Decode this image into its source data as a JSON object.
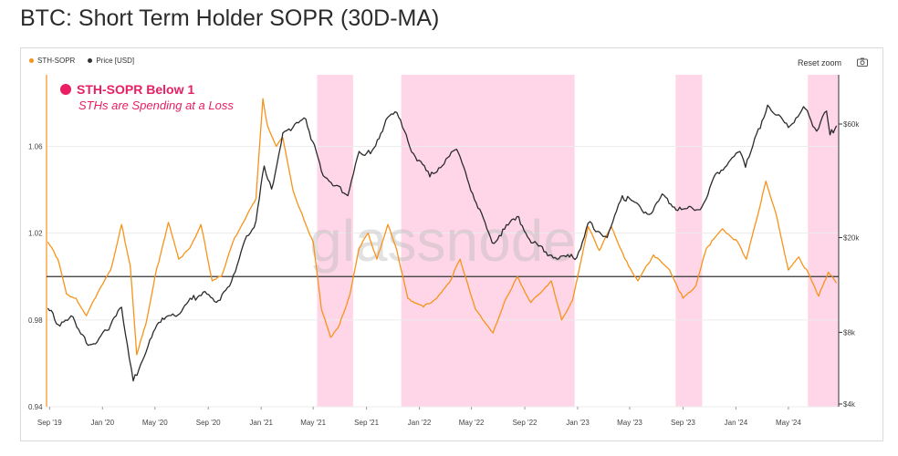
{
  "title": "BTC: Short Term Holder SOPR (30D-MA)",
  "legend": [
    {
      "label": "STH-SOPR",
      "color": "#f7931a"
    },
    {
      "label": "Price [USD]",
      "color": "#333333"
    }
  ],
  "toolbar": {
    "reset_label": "Reset zoom",
    "camera_icon": "camera-icon"
  },
  "annotation": {
    "title": "STH-SOPR Below 1",
    "subtitle": "STHs are Spending at a Loss",
    "color": "#e91e63"
  },
  "watermark": "glassnode",
  "colors": {
    "sopr": "#f7931a",
    "price": "#2b2b2b",
    "band": "#ffd6e7",
    "baseline": "#333333"
  },
  "chart_data": {
    "type": "line",
    "x_ticks": [
      "Sep '19",
      "Jan '20",
      "May '20",
      "Sep '20",
      "Jan '21",
      "May '21",
      "Sep '21",
      "Jan '22",
      "May '22",
      "Sep '22",
      "Jan '23",
      "May '23",
      "Sep '23",
      "Jan '24",
      "May '24"
    ],
    "x_range": [
      "2019-08-25",
      "2024-08-25"
    ],
    "y_left": {
      "label": "STH-SOPR",
      "ticks": [
        "0.94",
        "0.98",
        "1.02",
        "1.06"
      ],
      "range": [
        0.94,
        1.093
      ]
    },
    "y_right": {
      "label": "Price [USD]",
      "scale": "log",
      "ticks": [
        "$4k",
        "$8k",
        "$20k",
        "$60k"
      ],
      "tick_values": [
        4000,
        8000,
        20000,
        60000
      ]
    },
    "baseline": 1.0,
    "highlight_bands": [
      [
        "2021-05-10",
        "2021-08-01"
      ],
      [
        "2021-11-20",
        "2022-12-25"
      ],
      [
        "2023-08-15",
        "2023-10-15"
      ],
      [
        "2024-06-15",
        "2024-08-25"
      ]
    ],
    "series": [
      {
        "name": "STH-SOPR",
        "axis": "left",
        "points": [
          [
            "2019-08-28",
            1.016
          ],
          [
            "2019-09-20",
            1.008
          ],
          [
            "2019-10-10",
            0.992
          ],
          [
            "2019-11-01",
            0.99
          ],
          [
            "2019-11-25",
            0.982
          ],
          [
            "2019-12-20",
            0.992
          ],
          [
            "2020-01-20",
            1.003
          ],
          [
            "2020-02-14",
            1.024
          ],
          [
            "2020-03-05",
            1.005
          ],
          [
            "2020-03-20",
            0.964
          ],
          [
            "2020-04-10",
            0.978
          ],
          [
            "2020-05-01",
            1.0
          ],
          [
            "2020-06-01",
            1.025
          ],
          [
            "2020-06-25",
            1.008
          ],
          [
            "2020-07-20",
            1.013
          ],
          [
            "2020-08-15",
            1.024
          ],
          [
            "2020-09-10",
            0.998
          ],
          [
            "2020-10-01",
            1.0
          ],
          [
            "2020-11-01",
            1.018
          ],
          [
            "2020-12-01",
            1.029
          ],
          [
            "2020-12-20",
            1.036
          ],
          [
            "2021-01-05",
            1.082
          ],
          [
            "2021-01-15",
            1.07
          ],
          [
            "2021-02-05",
            1.06
          ],
          [
            "2021-02-20",
            1.064
          ],
          [
            "2021-03-15",
            1.04
          ],
          [
            "2021-04-10",
            1.026
          ],
          [
            "2021-05-01",
            1.016
          ],
          [
            "2021-05-20",
            0.985
          ],
          [
            "2021-06-10",
            0.972
          ],
          [
            "2021-07-01",
            0.978
          ],
          [
            "2021-07-25",
            0.992
          ],
          [
            "2021-08-15",
            1.013
          ],
          [
            "2021-09-05",
            1.02
          ],
          [
            "2021-09-25",
            1.008
          ],
          [
            "2021-10-20",
            1.024
          ],
          [
            "2021-11-10",
            1.012
          ],
          [
            "2021-12-05",
            0.99
          ],
          [
            "2022-01-10",
            0.986
          ],
          [
            "2022-02-10",
            0.99
          ],
          [
            "2022-03-10",
            0.997
          ],
          [
            "2022-04-05",
            1.008
          ],
          [
            "2022-05-10",
            0.985
          ],
          [
            "2022-06-20",
            0.974
          ],
          [
            "2022-07-20",
            0.99
          ],
          [
            "2022-08-15",
            1.0
          ],
          [
            "2022-09-15",
            0.988
          ],
          [
            "2022-11-01",
            0.998
          ],
          [
            "2022-11-25",
            0.98
          ],
          [
            "2022-12-20",
            0.989
          ],
          [
            "2023-01-25",
            1.023
          ],
          [
            "2023-02-20",
            1.012
          ],
          [
            "2023-03-20",
            1.023
          ],
          [
            "2023-04-20",
            1.008
          ],
          [
            "2023-05-20",
            0.998
          ],
          [
            "2023-06-25",
            1.01
          ],
          [
            "2023-08-01",
            1.003
          ],
          [
            "2023-09-01",
            0.99
          ],
          [
            "2023-10-01",
            0.996
          ],
          [
            "2023-10-25",
            1.013
          ],
          [
            "2023-12-01",
            1.022
          ],
          [
            "2024-01-05",
            1.016
          ],
          [
            "2024-01-25",
            1.008
          ],
          [
            "2024-02-20",
            1.028
          ],
          [
            "2024-03-10",
            1.044
          ],
          [
            "2024-04-01",
            1.03
          ],
          [
            "2024-05-01",
            1.003
          ],
          [
            "2024-05-25",
            1.009
          ],
          [
            "2024-06-20",
            1.0
          ],
          [
            "2024-07-10",
            0.991
          ],
          [
            "2024-08-01",
            1.002
          ],
          [
            "2024-08-20",
            0.997
          ]
        ]
      },
      {
        "name": "Price [USD]",
        "axis": "right",
        "points": [
          [
            "2019-08-28",
            10100
          ],
          [
            "2019-09-25",
            8500
          ],
          [
            "2019-10-25",
            9300
          ],
          [
            "2019-11-25",
            7200
          ],
          [
            "2019-12-20",
            7300
          ],
          [
            "2020-01-20",
            8600
          ],
          [
            "2020-02-14",
            10200
          ],
          [
            "2020-03-12",
            5000
          ],
          [
            "2020-04-15",
            7000
          ],
          [
            "2020-05-10",
            8800
          ],
          [
            "2020-06-15",
            9400
          ],
          [
            "2020-07-25",
            11000
          ],
          [
            "2020-08-20",
            11800
          ],
          [
            "2020-09-20",
            10700
          ],
          [
            "2020-10-20",
            12500
          ],
          [
            "2020-11-20",
            18500
          ],
          [
            "2020-12-20",
            23500
          ],
          [
            "2021-01-08",
            40000
          ],
          [
            "2021-01-25",
            32000
          ],
          [
            "2021-02-20",
            55000
          ],
          [
            "2021-03-15",
            58000
          ],
          [
            "2021-04-14",
            63000
          ],
          [
            "2021-05-20",
            38000
          ],
          [
            "2021-06-20",
            33000
          ],
          [
            "2021-07-20",
            30000
          ],
          [
            "2021-08-15",
            46000
          ],
          [
            "2021-09-10",
            45000
          ],
          [
            "2021-10-20",
            64000
          ],
          [
            "2021-11-10",
            67000
          ],
          [
            "2021-12-10",
            48000
          ],
          [
            "2022-01-25",
            36000
          ],
          [
            "2022-03-28",
            47000
          ],
          [
            "2022-05-12",
            28000
          ],
          [
            "2022-06-18",
            19000
          ],
          [
            "2022-08-14",
            24500
          ],
          [
            "2022-09-20",
            19000
          ],
          [
            "2022-11-10",
            16500
          ],
          [
            "2022-12-30",
            16500
          ],
          [
            "2023-01-25",
            23000
          ],
          [
            "2023-03-10",
            20000
          ],
          [
            "2023-04-14",
            30000
          ],
          [
            "2023-06-15",
            25000
          ],
          [
            "2023-07-15",
            30500
          ],
          [
            "2023-08-20",
            26000
          ],
          [
            "2023-10-15",
            27000
          ],
          [
            "2023-11-15",
            37000
          ],
          [
            "2024-01-10",
            46000
          ],
          [
            "2024-01-23",
            39500
          ],
          [
            "2024-03-14",
            72000
          ],
          [
            "2024-05-01",
            58000
          ],
          [
            "2024-06-05",
            71000
          ],
          [
            "2024-07-05",
            56000
          ],
          [
            "2024-07-28",
            68000
          ],
          [
            "2024-08-05",
            54000
          ],
          [
            "2024-08-20",
            59000
          ]
        ]
      }
    ]
  }
}
